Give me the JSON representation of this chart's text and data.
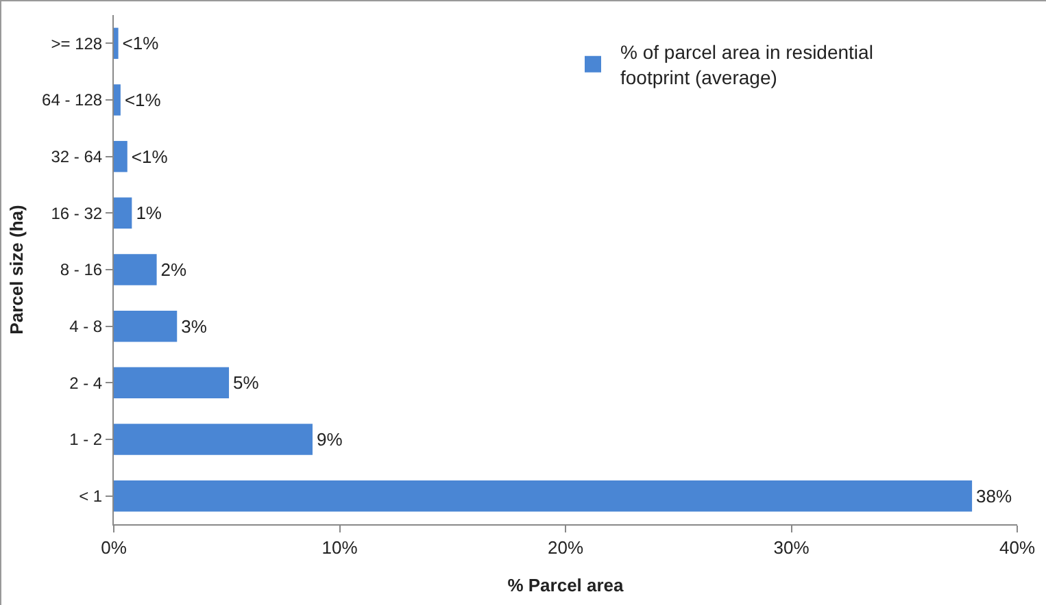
{
  "chart_data": {
    "type": "bar",
    "orientation": "horizontal",
    "xlabel": "% Parcel area",
    "ylabel": "Parcel size (ha)",
    "categories": [
      ">= 128",
      "64 - 128",
      "32 - 64",
      "16 - 32",
      "8 - 16",
      "4 - 8",
      "2 - 4",
      "1 - 2",
      "< 1"
    ],
    "series": [
      {
        "name": "% of parcel area in residential footprint (average)",
        "color": "#4a86d4",
        "values": [
          0.2,
          0.3,
          0.6,
          0.8,
          1.9,
          2.8,
          5.1,
          8.8,
          38.0
        ],
        "value_labels": [
          "<1%",
          "<1%",
          "<1%",
          "1%",
          "2%",
          "3%",
          "5%",
          "9%",
          "38%"
        ]
      }
    ],
    "xlim": [
      0,
      40
    ],
    "xticks": [
      {
        "value": 0,
        "label": "0%"
      },
      {
        "value": 10,
        "label": "10%"
      },
      {
        "value": 20,
        "label": "20%"
      },
      {
        "value": 30,
        "label": "30%"
      },
      {
        "value": 40,
        "label": "40%"
      }
    ],
    "grid": false,
    "legend": "top right"
  }
}
